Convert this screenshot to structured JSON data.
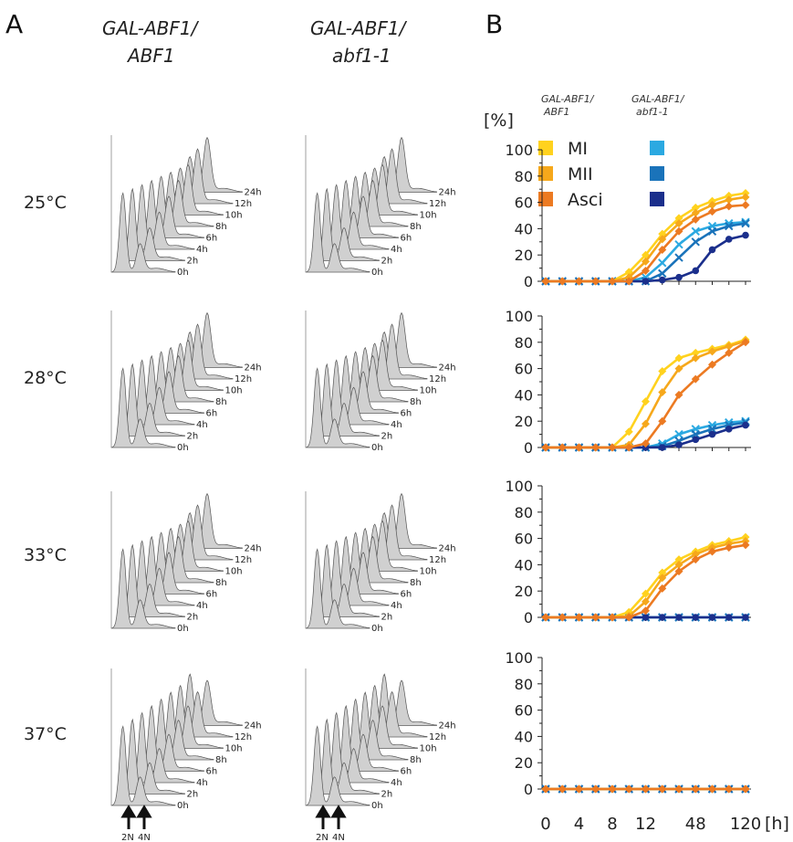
{
  "panel_a": {
    "letter": "A",
    "genotype_1_line1": "GAL-ABF1/",
    "genotype_1_line2": "ABF1",
    "genotype_2_line1": "GAL-ABF1/",
    "genotype_2_line2": "abf1-1",
    "temperatures": [
      "25°C",
      "28°C",
      "33°C",
      "37°C"
    ],
    "time_labels": [
      "0h",
      "2h",
      "4h",
      "6h",
      "8h",
      "10h",
      "12h",
      "24h"
    ],
    "ploidy_labels": [
      "2N",
      "4N"
    ]
  },
  "panel_b": {
    "letter": "B",
    "legend_header_1_line1": "GAL-ABF1/",
    "legend_header_1_line2": "ABF1",
    "legend_header_2_line1": "GAL-ABF1/",
    "legend_header_2_line2": "abf1-1",
    "y_unit": "[%]",
    "x_unit": "[h]"
  },
  "colors": {
    "ABF1_MI": "#FFD21E",
    "ABF1_MII": "#F6A81B",
    "ABF1_Asci": "#EC7A22",
    "abf1_MI": "#2BA9E1",
    "abf1_MII": "#1A73BA",
    "abf1_Asci": "#1B2F8C",
    "histogram_fill": "#d0d0d0"
  },
  "chart_data": [
    {
      "type": "line",
      "panel": "25°C",
      "x": [
        0,
        2,
        4,
        6,
        8,
        10,
        12,
        24,
        36,
        48,
        72,
        96,
        120
      ],
      "x_tick_labels": [
        "0",
        "4",
        "8",
        "12",
        "48",
        "120"
      ],
      "ylim": [
        0,
        100
      ],
      "y_ticks": [
        0,
        20,
        40,
        60,
        80,
        100
      ],
      "series": [
        {
          "name": "MI",
          "strain": "GAL-ABF1/ABF1",
          "values": [
            0,
            0,
            0,
            0,
            0,
            7,
            20,
            36,
            48,
            56,
            61,
            65,
            67
          ]
        },
        {
          "name": "MII",
          "strain": "GAL-ABF1/ABF1",
          "values": [
            0,
            0,
            0,
            0,
            0,
            3,
            15,
            32,
            44,
            52,
            58,
            62,
            64
          ]
        },
        {
          "name": "Asci",
          "strain": "GAL-ABF1/ABF1",
          "values": [
            0,
            0,
            0,
            0,
            0,
            0,
            8,
            24,
            38,
            47,
            53,
            57,
            58
          ]
        },
        {
          "name": "MI",
          "strain": "GAL-ABF1/abf1-1",
          "values": [
            0,
            0,
            0,
            0,
            0,
            0,
            3,
            14,
            28,
            38,
            42,
            44,
            45
          ]
        },
        {
          "name": "MII",
          "strain": "GAL-ABF1/abf1-1",
          "values": [
            0,
            0,
            0,
            0,
            0,
            0,
            0,
            6,
            18,
            30,
            38,
            42,
            44
          ]
        },
        {
          "name": "Asci",
          "strain": "GAL-ABF1/abf1-1",
          "values": [
            0,
            0,
            0,
            0,
            0,
            0,
            0,
            1,
            3,
            8,
            24,
            32,
            35
          ]
        }
      ]
    },
    {
      "type": "line",
      "panel": "28°C",
      "x": [
        0,
        2,
        4,
        6,
        8,
        10,
        12,
        24,
        36,
        48,
        72,
        96,
        120
      ],
      "ylim": [
        0,
        100
      ],
      "y_ticks": [
        0,
        20,
        40,
        60,
        80,
        100
      ],
      "series": [
        {
          "name": "MI",
          "strain": "GAL-ABF1/ABF1",
          "values": [
            0,
            0,
            0,
            0,
            0,
            12,
            35,
            58,
            68,
            72,
            75,
            78,
            82
          ]
        },
        {
          "name": "MII",
          "strain": "GAL-ABF1/ABF1",
          "values": [
            0,
            0,
            0,
            0,
            0,
            2,
            18,
            42,
            60,
            68,
            73,
            77,
            81
          ]
        },
        {
          "name": "Asci",
          "strain": "GAL-ABF1/ABF1",
          "values": [
            0,
            0,
            0,
            0,
            0,
            0,
            3,
            20,
            40,
            52,
            63,
            72,
            80
          ]
        },
        {
          "name": "MI",
          "strain": "GAL-ABF1/abf1-1",
          "values": [
            0,
            0,
            0,
            0,
            0,
            0,
            0,
            3,
            10,
            14,
            17,
            19,
            20
          ]
        },
        {
          "name": "MII",
          "strain": "GAL-ABF1/abf1-1",
          "values": [
            0,
            0,
            0,
            0,
            0,
            0,
            0,
            1,
            5,
            10,
            14,
            17,
            19
          ]
        },
        {
          "name": "Asci",
          "strain": "GAL-ABF1/abf1-1",
          "values": [
            0,
            0,
            0,
            0,
            0,
            0,
            0,
            0,
            2,
            6,
            10,
            14,
            17
          ]
        }
      ]
    },
    {
      "type": "line",
      "panel": "33°C",
      "x": [
        0,
        2,
        4,
        6,
        8,
        10,
        12,
        24,
        36,
        48,
        72,
        96,
        120
      ],
      "ylim": [
        0,
        100
      ],
      "y_ticks": [
        0,
        20,
        40,
        60,
        80,
        100
      ],
      "series": [
        {
          "name": "MI",
          "strain": "GAL-ABF1/ABF1",
          "values": [
            0,
            0,
            0,
            0,
            0,
            4,
            18,
            34,
            44,
            50,
            55,
            58,
            61
          ]
        },
        {
          "name": "MII",
          "strain": "GAL-ABF1/ABF1",
          "values": [
            0,
            0,
            0,
            0,
            0,
            1,
            12,
            30,
            40,
            48,
            53,
            56,
            58
          ]
        },
        {
          "name": "Asci",
          "strain": "GAL-ABF1/ABF1",
          "values": [
            0,
            0,
            0,
            0,
            0,
            0,
            5,
            22,
            35,
            44,
            50,
            53,
            55
          ]
        },
        {
          "name": "MI",
          "strain": "GAL-ABF1/abf1-1",
          "values": [
            0,
            0,
            0,
            0,
            0,
            0,
            0,
            0,
            0,
            0,
            0,
            0,
            0
          ]
        },
        {
          "name": "MII",
          "strain": "GAL-ABF1/abf1-1",
          "values": [
            0,
            0,
            0,
            0,
            0,
            0,
            0,
            0,
            0,
            0,
            0,
            0,
            0
          ]
        },
        {
          "name": "Asci",
          "strain": "GAL-ABF1/abf1-1",
          "values": [
            0,
            0,
            0,
            0,
            0,
            0,
            0,
            0,
            0,
            0,
            0,
            0,
            0
          ]
        }
      ]
    },
    {
      "type": "line",
      "panel": "37°C",
      "x": [
        0,
        2,
        4,
        6,
        8,
        10,
        12,
        24,
        36,
        48,
        72,
        96,
        120
      ],
      "ylim": [
        0,
        100
      ],
      "y_ticks": [
        0,
        20,
        40,
        60,
        80,
        100
      ],
      "series": [
        {
          "name": "MI",
          "strain": "GAL-ABF1/ABF1",
          "values": [
            0,
            0,
            0,
            0,
            0,
            0,
            0,
            0,
            0,
            0,
            0,
            0,
            0
          ]
        },
        {
          "name": "MII",
          "strain": "GAL-ABF1/ABF1",
          "values": [
            0,
            0,
            0,
            0,
            0,
            0,
            0,
            0,
            0,
            0,
            0,
            0,
            0
          ]
        },
        {
          "name": "Asci",
          "strain": "GAL-ABF1/ABF1",
          "values": [
            0,
            0,
            0,
            0,
            0,
            0,
            0,
            0,
            0,
            0,
            0,
            0,
            0
          ]
        },
        {
          "name": "MI",
          "strain": "GAL-ABF1/abf1-1",
          "values": [
            0,
            0,
            0,
            0,
            0,
            0,
            0,
            0,
            0,
            0,
            0,
            0,
            0
          ]
        },
        {
          "name": "MII",
          "strain": "GAL-ABF1/abf1-1",
          "values": [
            0,
            0,
            0,
            0,
            0,
            0,
            0,
            0,
            0,
            0,
            0,
            0,
            0
          ]
        },
        {
          "name": "Asci",
          "strain": "GAL-ABF1/abf1-1",
          "values": [
            0,
            0,
            0,
            0,
            0,
            0,
            0,
            0,
            0,
            0,
            0,
            0,
            0
          ]
        }
      ]
    }
  ]
}
